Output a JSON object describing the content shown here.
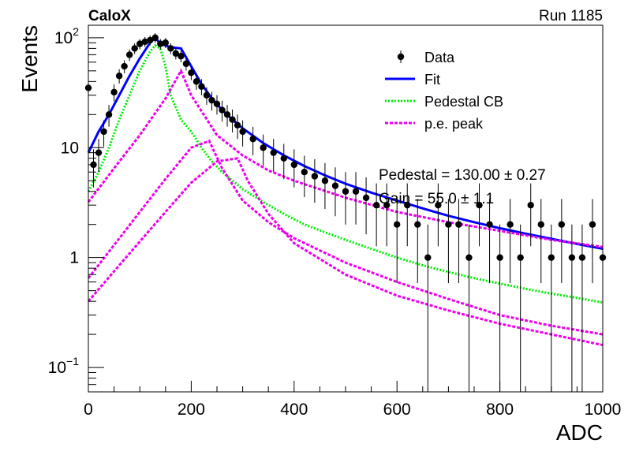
{
  "header": {
    "left_title": "CaloX",
    "right_title": "Run 1185"
  },
  "chart_data": {
    "type": "scatter",
    "title": "",
    "xlabel": "ADC",
    "ylabel": "Events",
    "xlim": [
      0,
      1000
    ],
    "ylim": [
      0.06,
      130
    ],
    "yscale": "log",
    "x_ticks": [
      {
        "value": 0,
        "label": "0"
      },
      {
        "value": 200,
        "label": "200"
      },
      {
        "value": 400,
        "label": "400"
      },
      {
        "value": 600,
        "label": "600"
      },
      {
        "value": 800,
        "label": "800"
      },
      {
        "value": 1000,
        "label": "1000"
      }
    ],
    "y_ticks": [
      {
        "value": 0.1,
        "base": "10",
        "exp": "−1"
      },
      {
        "value": 1,
        "base": "1",
        "exp": ""
      },
      {
        "value": 10,
        "base": "10",
        "exp": ""
      },
      {
        "value": 100,
        "base": "10",
        "exp": "2"
      }
    ],
    "grid": false,
    "legend_position": "top-right",
    "legend": [
      {
        "name": "Data",
        "style": "marker",
        "color": "#000000"
      },
      {
        "name": "Fit",
        "style": "solid",
        "color": "#0000ff"
      },
      {
        "name": "Pedestal CB",
        "style": "dotted",
        "color": "#00ee00"
      },
      {
        "name": "p.e. peak",
        "style": "dashed",
        "color": "#ee00ee"
      }
    ],
    "annotations": [
      "Pedestal = 130.00 ± 0.27",
      "Gain = 55.0 ± 1.1"
    ],
    "series": [
      {
        "name": "Data",
        "kind": "points_with_errors",
        "color": "#000000",
        "x": [
          0,
          10,
          20,
          30,
          40,
          50,
          60,
          70,
          80,
          90,
          100,
          110,
          120,
          130,
          140,
          150,
          160,
          170,
          180,
          190,
          200,
          210,
          220,
          230,
          240,
          250,
          260,
          270,
          280,
          290,
          300,
          320,
          340,
          360,
          380,
          400,
          420,
          440,
          460,
          480,
          500,
          520,
          540,
          560,
          580,
          600,
          620,
          640,
          660,
          680,
          700,
          720,
          740,
          760,
          780,
          800,
          820,
          840,
          860,
          880,
          900,
          920,
          940,
          960,
          980,
          1000
        ],
        "y": [
          35,
          7,
          9,
          14,
          20,
          32,
          45,
          55,
          70,
          80,
          88,
          92,
          95,
          100,
          88,
          90,
          80,
          72,
          68,
          58,
          48,
          40,
          36,
          30,
          27,
          25,
          22,
          20,
          18,
          16,
          14,
          12,
          10,
          9,
          8,
          7,
          6,
          5.5,
          5,
          4.5,
          4,
          4,
          3.5,
          3,
          3,
          2,
          3,
          2,
          1,
          3,
          2,
          2,
          1,
          3,
          2,
          1,
          2,
          1,
          3,
          2,
          1,
          2,
          1,
          1,
          2,
          1
        ]
      },
      {
        "name": "Fit",
        "kind": "line",
        "color": "#0000ff",
        "x": [
          0,
          20,
          40,
          60,
          80,
          100,
          120,
          130,
          140,
          160,
          180,
          200,
          220,
          240,
          260,
          280,
          300,
          340,
          380,
          420,
          460,
          500,
          550,
          600,
          650,
          700,
          750,
          800,
          850,
          900,
          950,
          1000
        ],
        "y": [
          9,
          14,
          20,
          30,
          45,
          65,
          90,
          100,
          88,
          82,
          80,
          55,
          38,
          28,
          22,
          18,
          15,
          11,
          8.5,
          6.8,
          5.6,
          4.7,
          3.9,
          3.3,
          2.8,
          2.4,
          2.1,
          1.85,
          1.65,
          1.48,
          1.33,
          1.2
        ]
      },
      {
        "name": "Pedestal CB",
        "kind": "line",
        "color": "#00ee00",
        "x": [
          0,
          20,
          40,
          60,
          80,
          100,
          120,
          130,
          140,
          150,
          160,
          180,
          200,
          220,
          240,
          260,
          280,
          300,
          340,
          380,
          420,
          460,
          500,
          550,
          600,
          650,
          700,
          750,
          800,
          850,
          900,
          950,
          1000
        ],
        "y": [
          4,
          6,
          10,
          18,
          30,
          50,
          75,
          85,
          80,
          55,
          30,
          18,
          14,
          10,
          7.5,
          6,
          5,
          4.2,
          3.2,
          2.5,
          2.0,
          1.7,
          1.45,
          1.2,
          1.0,
          0.85,
          0.74,
          0.65,
          0.58,
          0.52,
          0.47,
          0.43,
          0.39
        ]
      },
      {
        "name": "p.e. peak 1",
        "kind": "line",
        "color": "#ee00ee",
        "x": [
          0,
          50,
          100,
          150,
          180,
          200,
          250,
          300,
          350,
          400,
          500,
          600,
          700,
          800,
          900,
          1000
        ],
        "y": [
          3.2,
          6.5,
          13,
          28,
          50,
          30,
          13,
          8.5,
          6.2,
          5,
          3.5,
          2.6,
          2.1,
          1.75,
          1.45,
          1.25
        ]
      },
      {
        "name": "p.e. peak 2",
        "kind": "line",
        "color": "#ee00ee",
        "x": [
          0,
          50,
          100,
          150,
          200,
          235,
          260,
          300,
          350,
          400,
          500,
          600,
          700,
          800,
          900,
          1000
        ],
        "y": [
          0.65,
          1.3,
          2.6,
          5.2,
          10,
          11.5,
          6.5,
          3.3,
          2.1,
          1.5,
          0.9,
          0.6,
          0.42,
          0.3,
          0.24,
          0.2
        ]
      },
      {
        "name": "p.e. peak 3",
        "kind": "line",
        "color": "#ee00ee",
        "x": [
          0,
          50,
          100,
          150,
          200,
          250,
          290,
          310,
          350,
          400,
          500,
          600,
          700,
          800,
          900,
          1000
        ],
        "y": [
          0.4,
          0.75,
          1.4,
          2.6,
          4.8,
          7.5,
          8,
          5,
          2.5,
          1.35,
          0.7,
          0.45,
          0.33,
          0.25,
          0.2,
          0.16
        ]
      }
    ]
  }
}
